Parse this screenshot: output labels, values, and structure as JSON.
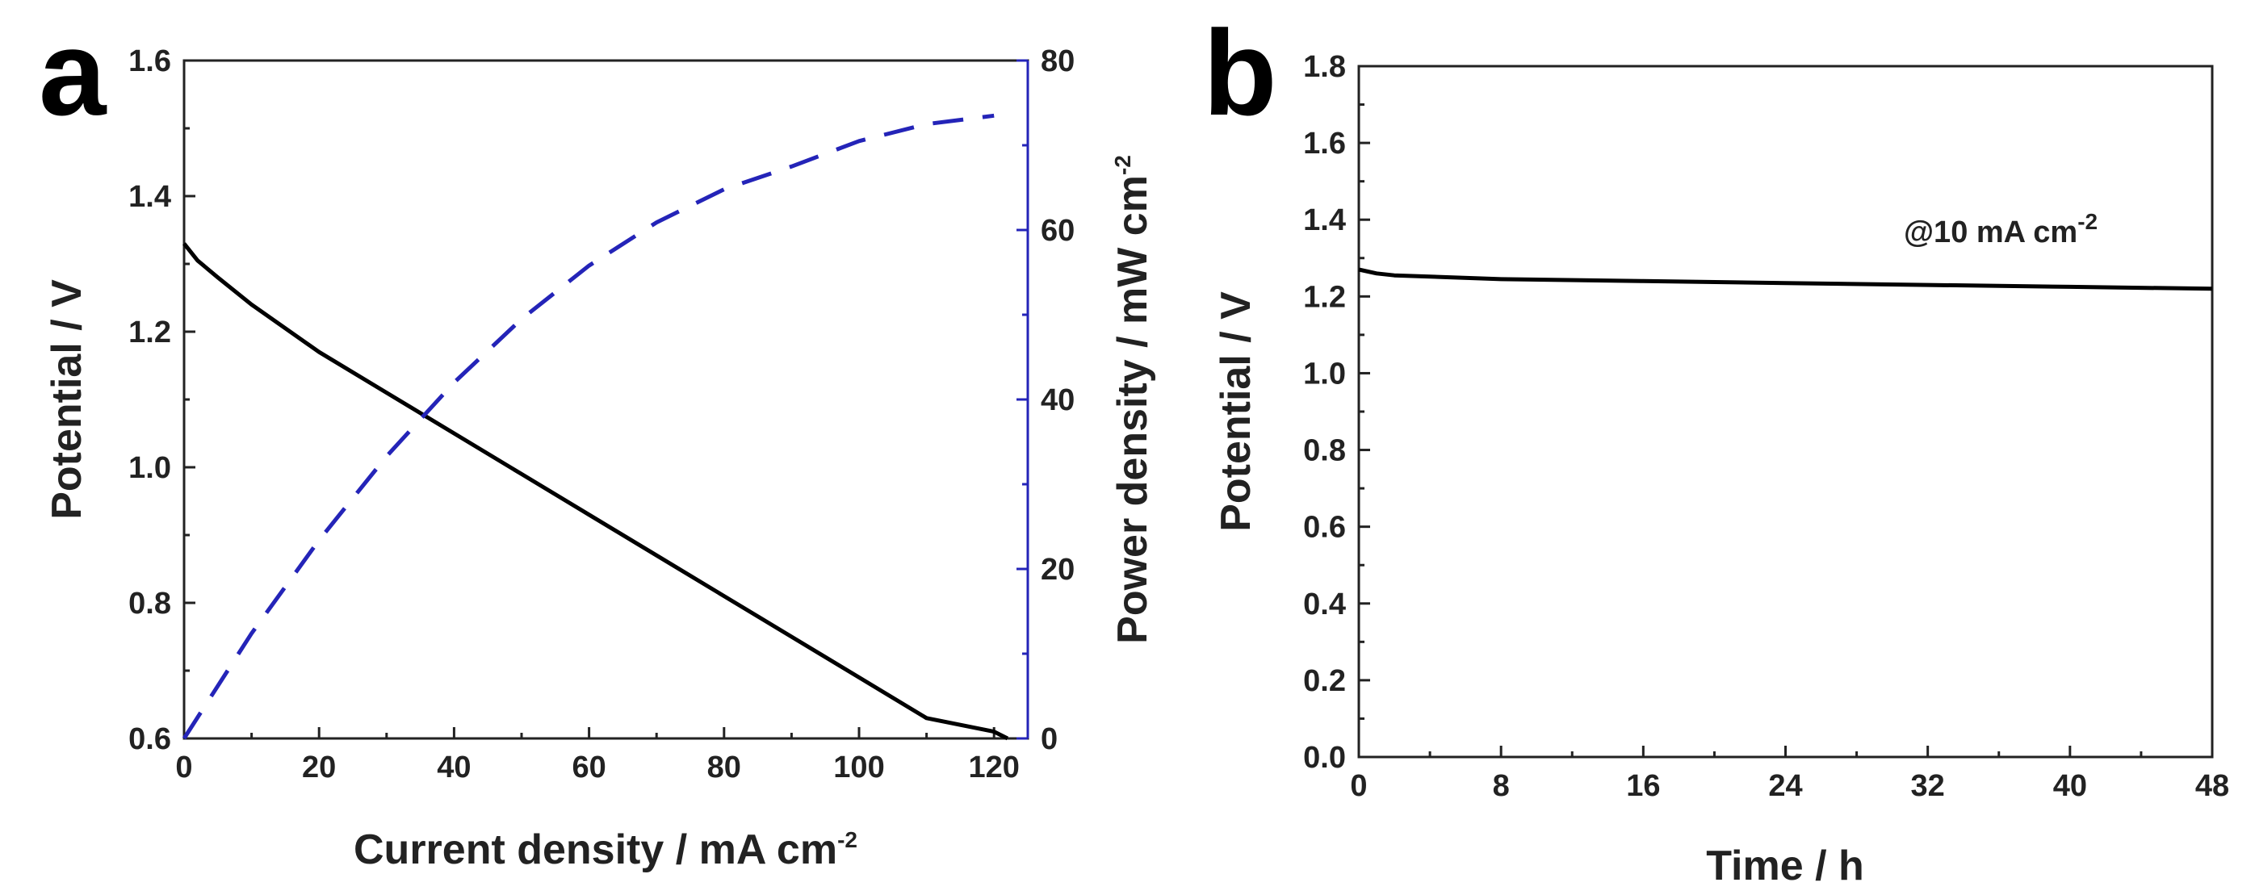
{
  "chart_data": [
    {
      "panel": "a",
      "type": "line",
      "xlabel": "Current density / mA cm",
      "xlabel_sup": "-2",
      "ylabel": "Potential / V",
      "y2label": "Power density / mW cm",
      "y2label_sup": "-2",
      "xlim": [
        0,
        125
      ],
      "ylim": [
        0.6,
        1.6
      ],
      "y2lim": [
        0,
        80
      ],
      "xticks": [
        0,
        20,
        40,
        60,
        80,
        100,
        120
      ],
      "xtick_labels": [
        "0",
        "20",
        "40",
        "60",
        "80",
        "100",
        "120"
      ],
      "yticks": [
        0.6,
        0.8,
        1.0,
        1.2,
        1.4,
        1.6
      ],
      "ytick_labels": [
        "0.6",
        "0.8",
        "1.0",
        "1.2",
        "1.4",
        "1.6"
      ],
      "y2ticks": [
        0,
        20,
        40,
        60,
        80
      ],
      "y2tick_labels": [
        "0",
        "20",
        "40",
        "60",
        "80"
      ],
      "y2_color": "#2424b8",
      "series": [
        {
          "name": "Potential",
          "axis": "left",
          "color": "#000000",
          "style": "solid",
          "x": [
            0,
            2,
            5,
            10,
            20,
            30,
            40,
            50,
            60,
            70,
            80,
            90,
            100,
            110,
            120,
            122
          ],
          "y": [
            1.33,
            1.305,
            1.28,
            1.24,
            1.17,
            1.11,
            1.05,
            0.99,
            0.93,
            0.87,
            0.81,
            0.75,
            0.69,
            0.63,
            0.61,
            0.6
          ]
        },
        {
          "name": "Power density",
          "axis": "right",
          "color": "#2424b8",
          "style": "dashed",
          "x": [
            0,
            10,
            20,
            30,
            40,
            50,
            60,
            70,
            80,
            90,
            100,
            110,
            120
          ],
          "y": [
            0,
            12.4,
            23.4,
            33.3,
            42.0,
            49.5,
            55.8,
            60.9,
            64.8,
            67.5,
            70.5,
            72.5,
            73.5
          ]
        }
      ]
    },
    {
      "panel": "b",
      "type": "line",
      "xlabel": "Time / h",
      "ylabel": "Potential / V",
      "xlim": [
        0,
        48
      ],
      "ylim": [
        0,
        1.8
      ],
      "xticks": [
        0,
        8,
        16,
        24,
        32,
        40,
        48
      ],
      "xtick_labels": [
        "0",
        "8",
        "16",
        "24",
        "32",
        "40",
        "48"
      ],
      "yticks": [
        0.0,
        0.2,
        0.4,
        0.6,
        0.8,
        1.0,
        1.2,
        1.4,
        1.6,
        1.8
      ],
      "ytick_labels": [
        "0.0",
        "0.2",
        "0.4",
        "0.6",
        "0.8",
        "1.0",
        "1.2",
        "1.4",
        "1.6",
        "1.8"
      ],
      "annotation": "@10 mA cm",
      "annotation_sup": "-2",
      "series": [
        {
          "name": "Potential",
          "color": "#000000",
          "style": "solid",
          "x": [
            0,
            1,
            2,
            8,
            16,
            24,
            32,
            40,
            48
          ],
          "y": [
            1.27,
            1.26,
            1.255,
            1.245,
            1.24,
            1.235,
            1.23,
            1.225,
            1.22
          ]
        }
      ]
    }
  ],
  "panel_labels": {
    "a": "a",
    "b": "b"
  }
}
